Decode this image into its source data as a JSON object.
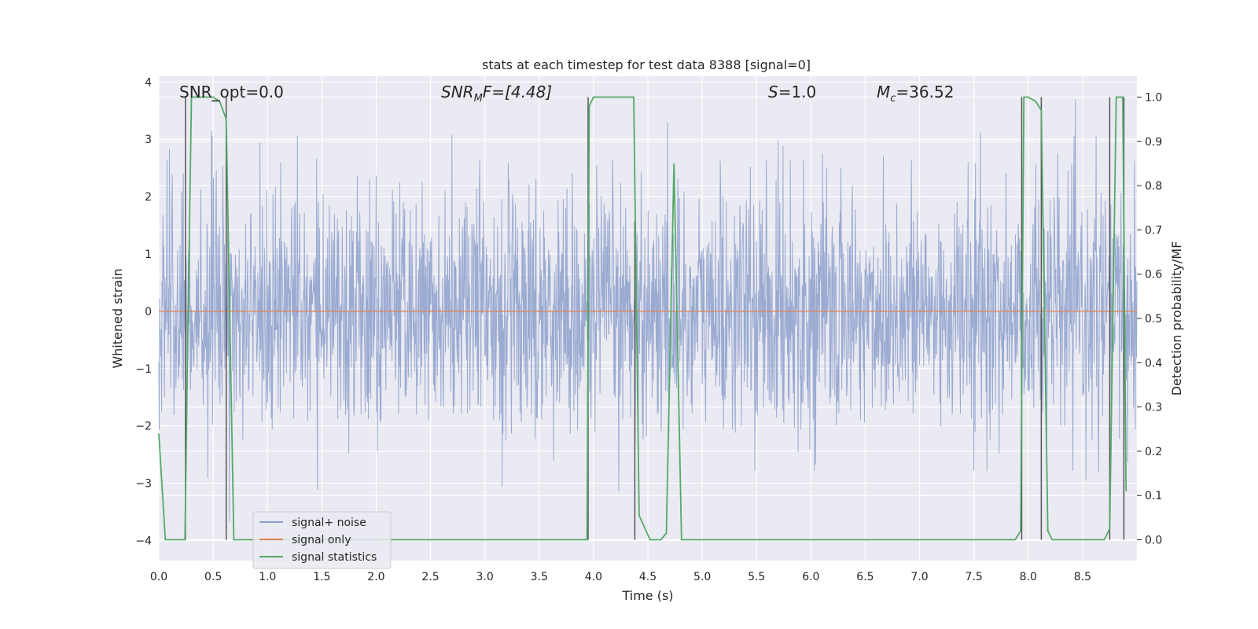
{
  "chart_data": {
    "type": "line",
    "title": "stats at each timestep for test data 8388 [signal=0]",
    "xlabel": "Time (s)",
    "ylabel": "Whitened strain",
    "ylabel_right": "Detection probability/MF",
    "xlim": [
      0.0,
      9.0
    ],
    "ylim": [
      -4.35,
      4.1
    ],
    "ylim_right": [
      -0.047,
      1.047
    ],
    "x_ticks": [
      "0.0",
      "0.5",
      "1.0",
      "1.5",
      "2.0",
      "2.5",
      "3.0",
      "3.5",
      "4.0",
      "4.5",
      "5.0",
      "5.5",
      "6.0",
      "6.5",
      "7.0",
      "7.5",
      "8.0",
      "8.5"
    ],
    "y_ticks": [
      "4",
      "3",
      "2",
      "1",
      "0",
      "−1",
      "−2",
      "−3",
      "−4"
    ],
    "y_right_ticks": [
      "1.0",
      "0.9",
      "0.8",
      "0.7",
      "0.6",
      "0.5",
      "0.4",
      "0.3",
      "0.2",
      "0.1",
      "0.0"
    ],
    "grid": true,
    "legend_placement": "lower-left",
    "annotations": {
      "snr_opt": "SNR_opt=0.0",
      "snr_mf_sym": "SNR",
      "snr_mf_sub": "M",
      "snr_mf_rest": "F=[4.48]",
      "s_sym": "S",
      "s_rest": "=1.0",
      "mc_sym": "M",
      "mc_sub": "c",
      "mc_rest": "=36.52"
    },
    "series": [
      {
        "name": "signal+ noise",
        "color": "#8c9fcb",
        "description_values": "dense noise, approx range [-4.0, 3.7], typical envelope ±2"
      },
      {
        "name": "signal only",
        "color": "#dd8452",
        "x": [
          0.0,
          9.0
        ],
        "y": [
          0.0,
          0.0
        ]
      },
      {
        "name": "signal statistics",
        "color": "#55a868",
        "axis": "right",
        "x": [
          0.0,
          0.06,
          0.24,
          0.26,
          0.3,
          0.5,
          0.56,
          0.62,
          0.69,
          3.94,
          3.96,
          4.0,
          4.37,
          4.42,
          4.52,
          4.62,
          4.67,
          4.74,
          4.81,
          7.88,
          7.93,
          7.96,
          8.0,
          8.07,
          8.12,
          8.18,
          8.22,
          8.7,
          8.75,
          8.81,
          8.87,
          8.9
        ],
        "y": [
          0.24,
          0.0,
          0.0,
          0.34,
          1.0,
          1.0,
          0.99,
          0.95,
          0.0,
          0.0,
          0.98,
          1.0,
          1.0,
          0.055,
          0.0,
          0.0,
          0.015,
          0.85,
          0.0,
          0.0,
          0.02,
          1.0,
          1.0,
          0.99,
          0.97,
          0.02,
          0.0,
          0.0,
          0.025,
          1.0,
          1.0,
          0.11
        ]
      },
      {
        "name": "markers",
        "color": "#555555",
        "axis": "right",
        "x": [
          0.245,
          0.62,
          3.95,
          4.38,
          7.94,
          8.12,
          8.75,
          8.88
        ],
        "y_top": [
          1.0,
          1.0,
          1.0,
          0.72,
          1.0,
          1.0,
          1.0,
          1.0
        ]
      }
    ]
  },
  "legend": {
    "items": [
      {
        "label": "signal+ noise",
        "color": "#8c9fcb"
      },
      {
        "label": "signal only",
        "color": "#dd8452"
      },
      {
        "label": "signal statistics",
        "color": "#55a868"
      }
    ]
  }
}
